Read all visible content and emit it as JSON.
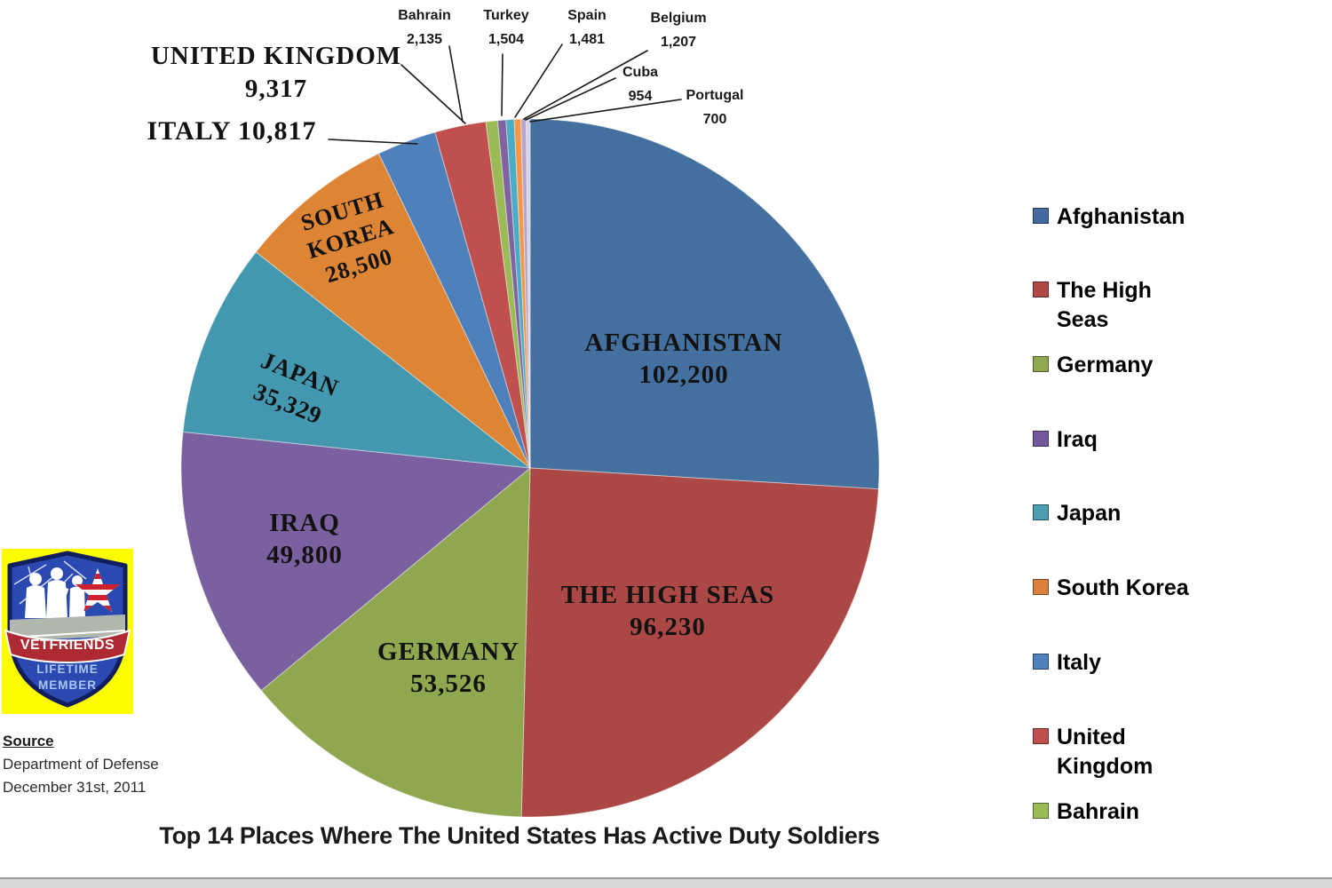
{
  "title": "Top 14 Places Where The United States Has Active Duty Soldiers",
  "chart_data": {
    "type": "pie",
    "title": "Top 14 Places Where The United States Has Active Duty Soldiers",
    "categories": [
      "Afghanistan",
      "The High Seas",
      "Germany",
      "Iraq",
      "Japan",
      "South Korea",
      "Italy",
      "United Kingdom",
      "Bahrain",
      "Turkey",
      "Spain",
      "Belgium",
      "Cuba",
      "Portugal"
    ],
    "values": [
      102200,
      96230,
      53526,
      49800,
      35329,
      28500,
      10817,
      9317,
      2135,
      1504,
      1481,
      1207,
      954,
      700
    ],
    "colors": [
      "#44709F",
      "#AB4845",
      "#8FA74F",
      "#7B60A0",
      "#4397AF",
      "#DE8535",
      "#4E80BC",
      "#C0504D",
      "#9BBB59",
      "#8064A2",
      "#4BACC6",
      "#F79646",
      "#B4A6CD",
      "#D5D2E2"
    ],
    "total": 393700,
    "start_angle": "top",
    "direction": "clockwise",
    "legend_position": "right"
  },
  "labels": {
    "afghanistan": [
      "AFGHANISTAN",
      "102,200"
    ],
    "high_seas": [
      "THE HIGH SEAS",
      "96,230"
    ],
    "germany": [
      "GERMANY",
      "53,526"
    ],
    "iraq": [
      "IRAQ",
      "49,800"
    ],
    "japan": [
      "JAPAN",
      "35,329"
    ],
    "south_korea": [
      "SOUTH",
      "KOREA",
      "28,500"
    ],
    "united_kingdom": [
      "UNITED KINGDOM",
      "9,317"
    ],
    "italy": [
      "ITALY 10,817"
    ],
    "bahrain": [
      "Bahrain",
      "2,135"
    ],
    "turkey": [
      "Turkey",
      "1,504"
    ],
    "spain": [
      "Spain",
      "1,481"
    ],
    "belgium": [
      "Belgium",
      "1,207"
    ],
    "cuba": [
      "Cuba",
      "954"
    ],
    "portugal": [
      "Portugal",
      "700"
    ]
  },
  "legend": {
    "items": [
      {
        "label": "Afghanistan",
        "color": "#44699E"
      },
      {
        "label": "The High Seas",
        "color": "#B04846"
      },
      {
        "label": "Germany",
        "color": "#90A951"
      },
      {
        "label": "Iraq",
        "color": "#75589B"
      },
      {
        "label": "Japan",
        "color": "#4D9DB2"
      },
      {
        "label": "South Korea",
        "color": "#D9813C"
      },
      {
        "label": "Italy",
        "color": "#4F81BD"
      },
      {
        "label": "United Kingdom",
        "color": "#C0504D"
      },
      {
        "label": "Bahrain",
        "color": "#9BBB59"
      }
    ]
  },
  "source": {
    "heading": "Source",
    "line1": "Department of Defense",
    "line2": "December 31st, 2011"
  },
  "logo": {
    "brand": "VETFRIENDS",
    "line1": "LIFETIME",
    "line2": "MEMBER"
  }
}
